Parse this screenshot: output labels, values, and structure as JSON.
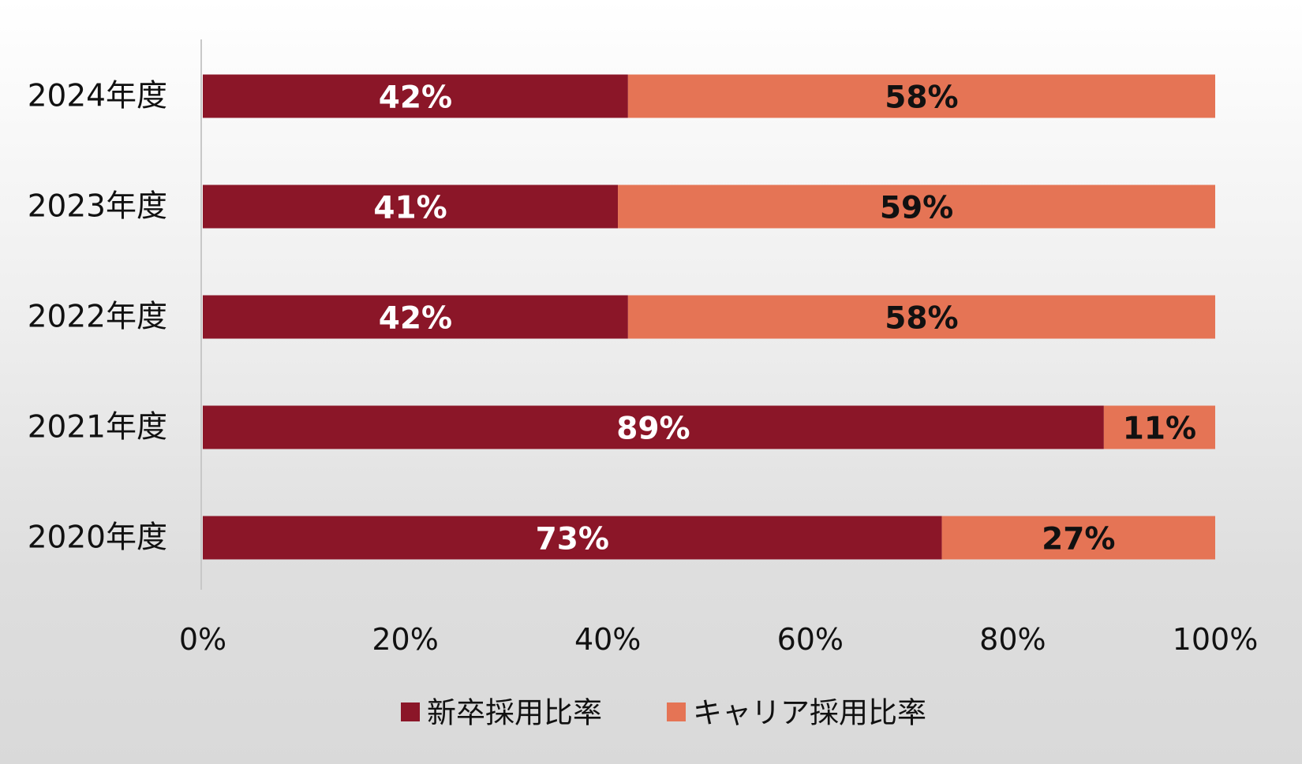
{
  "chart_data": {
    "type": "bar",
    "orientation": "horizontal",
    "stacked": true,
    "categories": [
      "2024年度",
      "2023年度",
      "2022年度",
      "2021年度",
      "2020年度"
    ],
    "series": [
      {
        "name": "新卒採用比率",
        "color": "#8b1628",
        "label_color": "#ffffff",
        "values": [
          42,
          41,
          42,
          89,
          73
        ],
        "labels": [
          "42%",
          "41%",
          "42%",
          "89%",
          "73%"
        ]
      },
      {
        "name": "キャリア採用比率",
        "color": "#e57455",
        "label_color": "#111111",
        "values": [
          58,
          59,
          58,
          11,
          27
        ],
        "labels": [
          "58%",
          "59%",
          "58%",
          "11%",
          "27%"
        ]
      }
    ],
    "xlim": [
      0,
      100
    ],
    "xticks": [
      0,
      20,
      40,
      60,
      80,
      100
    ],
    "xtick_labels": [
      "0%",
      "20%",
      "40%",
      "60%",
      "80%",
      "100%"
    ],
    "title": "",
    "xlabel": "",
    "ylabel": "",
    "grid": false,
    "legend": "bottom"
  }
}
